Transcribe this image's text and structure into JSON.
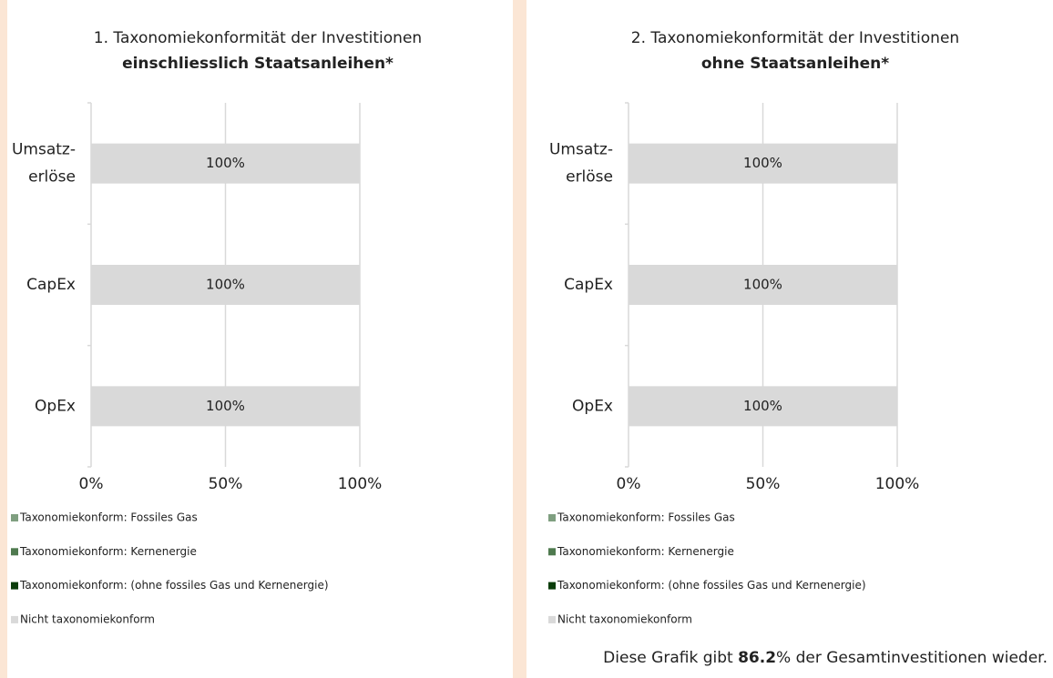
{
  "chart_data": [
    {
      "type": "stacked_bar_horizontal",
      "title": "1. Taxonomiekonformität der Investitionen",
      "subtitle": "einschliesslich Staatsanleihen*",
      "categories": [
        "Umsatz-\nerlöse",
        "CapEx",
        "OpEx"
      ],
      "series": [
        {
          "name": "Taxonomiekonform: Fossiles Gas",
          "color": "#7f9f80",
          "values": [
            0,
            0,
            0
          ]
        },
        {
          "name": "Taxonomiekonform: Kernenergie",
          "color": "#4f7a4f",
          "values": [
            0,
            0,
            0
          ]
        },
        {
          "name": "Taxonomiekonform: (ohne fossiles Gas und Kernenergie)",
          "color": "#0b3d0b",
          "values": [
            0,
            0,
            0
          ]
        },
        {
          "name": "Nicht taxonomiekonform",
          "color": "#d9d9d9",
          "values": [
            100,
            100,
            100
          ],
          "value_labels": [
            "100%",
            "100%",
            "100%"
          ]
        }
      ],
      "xlim": [
        0,
        100
      ],
      "xticks": [
        {
          "value": 0,
          "label": "0%"
        },
        {
          "value": 50,
          "label": "50%"
        },
        {
          "value": 100,
          "label": "100%"
        }
      ],
      "grid": true,
      "legend": "bottom"
    },
    {
      "type": "stacked_bar_horizontal",
      "title": "2. Taxonomiekonformität der Investitionen",
      "subtitle": "ohne Staatsanleihen*",
      "categories": [
        "Umsatz-\nerlöse",
        "CapEx",
        "OpEx"
      ],
      "series": [
        {
          "name": "Taxonomiekonform: Fossiles Gas",
          "color": "#7f9f80",
          "values": [
            0,
            0,
            0
          ]
        },
        {
          "name": "Taxonomiekonform: Kernenergie",
          "color": "#4f7a4f",
          "values": [
            0,
            0,
            0
          ]
        },
        {
          "name": "Taxonomiekonform: (ohne fossiles Gas und Kernenergie)",
          "color": "#0b3d0b",
          "values": [
            0,
            0,
            0
          ]
        },
        {
          "name": "Nicht taxonomiekonform",
          "color": "#d9d9d9",
          "values": [
            100,
            100,
            100
          ],
          "value_labels": [
            "100%",
            "100%",
            "100%"
          ]
        }
      ],
      "xlim": [
        0,
        100
      ],
      "xticks": [
        {
          "value": 0,
          "label": "0%"
        },
        {
          "value": 50,
          "label": "50%"
        },
        {
          "value": 100,
          "label": "100%"
        }
      ],
      "grid": true,
      "legend": "bottom"
    }
  ],
  "footnote": {
    "before": "Diese Grafik gibt ",
    "value": 86.2,
    "after": "% der Gesamtinvestitionen wieder."
  }
}
